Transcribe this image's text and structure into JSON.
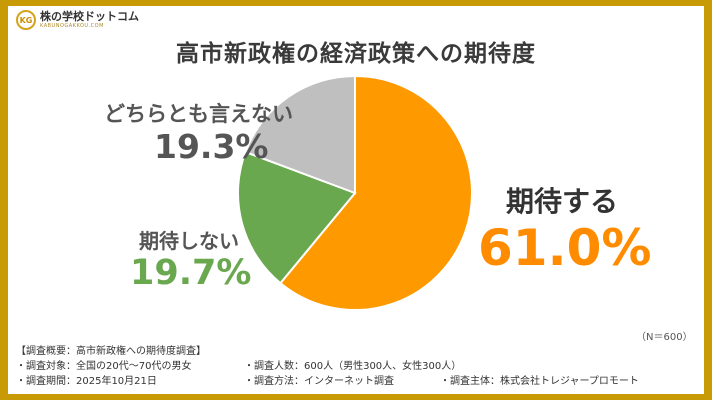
{
  "logo": {
    "mark": "KG",
    "name": "株の学校ドットコム",
    "sub": "KABUNOGAKKOU.COM"
  },
  "title": "高市新政権の経済政策への期待度",
  "chart_data": {
    "type": "pie",
    "title": "高市新政権の経済政策への期待度",
    "start_angle_deg": 0,
    "direction": "clockwise",
    "slices": [
      {
        "label": "期待する",
        "value": 61.0,
        "value_label": "61.0%",
        "color": "#ff9900"
      },
      {
        "label": "期待しない",
        "value": 19.7,
        "value_label": "19.7%",
        "color": "#6aa84f"
      },
      {
        "label": "どちらとも言えない",
        "value": 19.3,
        "value_label": "19.3%",
        "color": "#bfbfbf"
      }
    ]
  },
  "n_note": "（N＝600）",
  "footer": {
    "heading": "【調査概要：高市新政権への期待度調査】",
    "rows": [
      [
        "・調査対象：全国の20代～70代の男女",
        "・調査人数：600人（男性300人、女性300人）",
        ""
      ],
      [
        "・調査期間：2025年10月21日",
        "・調査方法：インターネット調査",
        "・調査主体：株式会社トレジャープロモート"
      ]
    ]
  }
}
